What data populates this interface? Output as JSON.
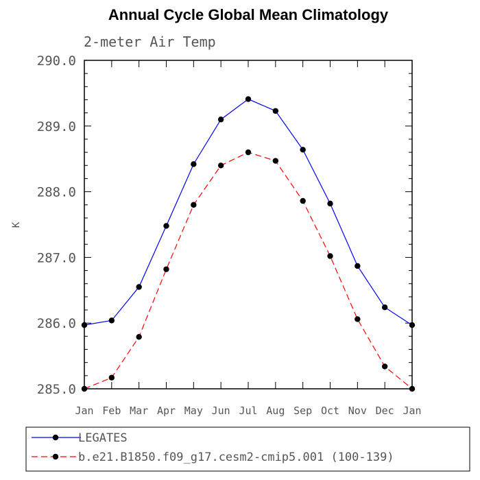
{
  "chart_data": {
    "type": "line",
    "title": "Annual Cycle Global Mean Climatology",
    "subtitle": "2-meter Air Temp",
    "xlabel": "",
    "ylabel": "K",
    "categories": [
      "Jan",
      "Feb",
      "Mar",
      "Apr",
      "May",
      "Jun",
      "Jul",
      "Aug",
      "Sep",
      "Oct",
      "Nov",
      "Dec",
      "Jan"
    ],
    "yticks": [
      "285.0",
      "286.0",
      "287.0",
      "288.0",
      "289.0",
      "290.0"
    ],
    "ylim": [
      285.0,
      290.0
    ],
    "grid": false,
    "legend_position": "bottom",
    "series": [
      {
        "name": "LEGATES",
        "color": "#0000ff",
        "style": "solid",
        "marker": "dot",
        "values": [
          285.97,
          286.04,
          286.55,
          287.48,
          288.42,
          289.1,
          289.41,
          289.23,
          288.64,
          287.82,
          286.87,
          286.24,
          285.97
        ]
      },
      {
        "name": "b.e21.B1850.f09_g17.cesm2-cmip5.001 (100-139)",
        "color": "#ff0000",
        "style": "dashed",
        "marker": "dot",
        "values": [
          285.0,
          285.17,
          285.79,
          286.82,
          287.8,
          288.4,
          288.6,
          288.47,
          287.86,
          287.02,
          286.06,
          285.34,
          285.0
        ]
      }
    ]
  }
}
